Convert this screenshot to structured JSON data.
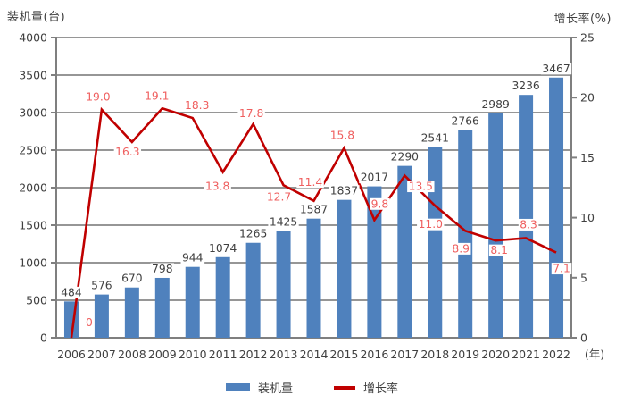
{
  "page": {
    "title_left": "装机量(台)",
    "title_right": "增长率(%)",
    "x_unit": "(年)"
  },
  "legend": {
    "bar_label": "装机量",
    "line_label": "增长率"
  },
  "colors": {
    "bar": "#4F81BD",
    "line": "#C00000",
    "line_label": "#EF5F5F",
    "bar_label": "#404040",
    "axis": "#7F7F7F",
    "grid": "#969696",
    "tick_text": "#404040"
  },
  "chart_data": {
    "type": "bar",
    "subtype": "bar+line combo",
    "categories": [
      "2006",
      "2007",
      "2008",
      "2009",
      "2010",
      "2011",
      "2012",
      "2013",
      "2014",
      "2015",
      "2016",
      "2017",
      "2018",
      "2019",
      "2020",
      "2021",
      "2022"
    ],
    "series": [
      {
        "name": "装机量",
        "type": "bar",
        "axis": "left",
        "values": [
          484,
          576,
          670,
          798,
          944,
          1074,
          1265,
          1425,
          1587,
          1837,
          2017,
          2290,
          2541,
          2766,
          2989,
          3236,
          3467
        ]
      },
      {
        "name": "增长率",
        "type": "line",
        "axis": "right",
        "values": [
          0,
          19.0,
          16.3,
          19.1,
          18.3,
          13.8,
          17.8,
          12.7,
          11.4,
          15.8,
          9.8,
          13.5,
          11.0,
          8.9,
          8.1,
          8.3,
          7.1
        ],
        "labels": [
          "0",
          "19.0",
          "16.3",
          "19.1",
          "18.3",
          "13.8",
          "17.8",
          "12.7",
          "11.4",
          "15.8",
          "9.8",
          "13.5",
          "11.0",
          "8.9",
          "8.1",
          "8.3",
          "7.1"
        ],
        "label_offsets": [
          [
            20,
            -13
          ],
          [
            -4,
            -10
          ],
          [
            -5,
            15
          ],
          [
            -6,
            -10
          ],
          [
            5,
            -10
          ],
          [
            -6,
            20
          ],
          [
            -2,
            -8
          ],
          [
            -5,
            17
          ],
          [
            -4,
            -17
          ],
          [
            -2,
            -10
          ],
          [
            6,
            -14
          ],
          [
            18,
            16
          ],
          [
            -5,
            25
          ],
          [
            -5,
            24
          ],
          [
            4,
            15
          ],
          [
            3,
            -11
          ],
          [
            6,
            22
          ]
        ]
      }
    ],
    "y_left": {
      "label": "装机量(台)",
      "min": 0,
      "max": 4000,
      "step": 500
    },
    "y_right": {
      "label": "增长率(%)",
      "min": 0,
      "max": 25,
      "step": 5
    },
    "xlabel": "(年)",
    "grid": true,
    "legend_position": "bottom"
  }
}
